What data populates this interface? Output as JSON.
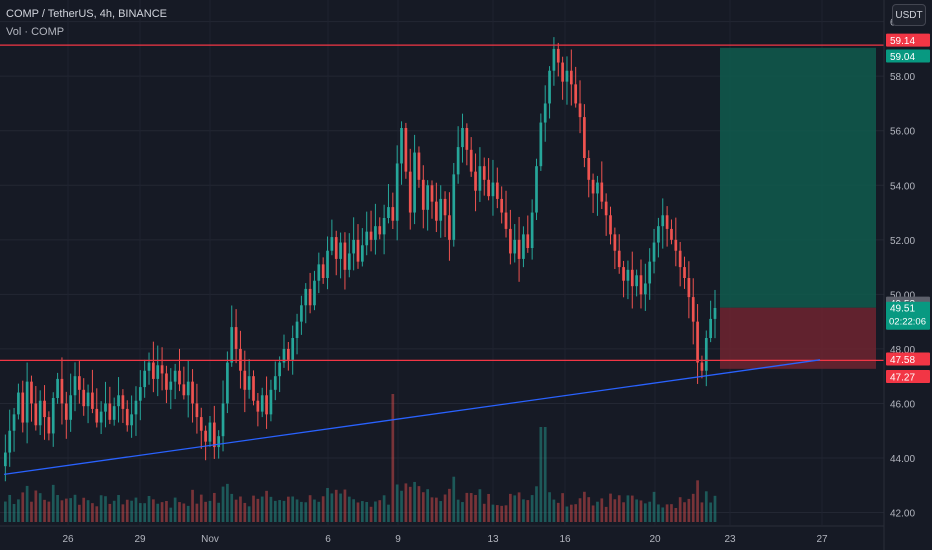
{
  "header": {
    "symbol_line": "COMP / TetherUS, 4h, BINANCE",
    "volume_line": "Vol · COMP"
  },
  "currency_button": "USDT",
  "price_labels": {
    "upper_line": "59.14",
    "target": "59.04",
    "last_close_gray": "49.53",
    "entry": "49.51",
    "countdown": "02:22:06",
    "support_line": "47.58",
    "stop": "47.27"
  },
  "colors": {
    "background": "#161a25",
    "up": "#26a69a",
    "down": "#ef5350",
    "horizontal_line": "#f23645",
    "trendline": "#2962ff",
    "profit_zone": "#0f5c4e",
    "loss_zone": "#6e2430"
  },
  "chart_data": {
    "type": "candlestick",
    "symbol": "COMP / TetherUS",
    "timeframe": "4h",
    "exchange": "BINANCE",
    "y_axis": {
      "unit": "USDT",
      "range": [
        41.8,
        60.5
      ],
      "ticks": [
        "60.00",
        "58.00",
        "56.00",
        "54.00",
        "52.00",
        "50.00",
        "48.00",
        "46.00",
        "44.00",
        "42.00"
      ]
    },
    "x_axis": {
      "ticks": [
        "26",
        "29",
        "Nov",
        "6",
        "9",
        "13",
        "16",
        "20",
        "23",
        "27"
      ]
    },
    "horizontal_lines": [
      59.14,
      47.58
    ],
    "trendline": {
      "from": {
        "date": "Oct 23",
        "price": 43.4
      },
      "to": {
        "date": "Nov 27",
        "price": 47.6
      }
    },
    "position": {
      "type": "long",
      "entry": 49.51,
      "target": 59.04,
      "stop": 47.27
    },
    "last_price": 49.51,
    "close_series": [
      44.2,
      45.0,
      45.6,
      46.4,
      45.3,
      46.8,
      46.0,
      45.2,
      46.1,
      45.5,
      44.9,
      46.2,
      46.9,
      46.0,
      45.4,
      46.3,
      47.0,
      46.5,
      45.9,
      46.4,
      45.8,
      45.3,
      45.7,
      46.0,
      45.4,
      45.9,
      46.3,
      45.8,
      45.2,
      45.6,
      46.1,
      46.6,
      47.2,
      47.5,
      46.9,
      47.4,
      47.1,
      46.5,
      46.8,
      47.2,
      46.7,
      46.3,
      46.8,
      46.0,
      45.5,
      45.0,
      44.6,
      45.3,
      44.4,
      44.8,
      46.0,
      47.5,
      48.8,
      48.0,
      47.2,
      46.5,
      47.0,
      46.1,
      45.7,
      46.3,
      45.6,
      46.5,
      47.0,
      47.5,
      48.0,
      47.6,
      48.4,
      49.0,
      49.6,
      50.2,
      49.6,
      50.5,
      51.1,
      50.6,
      51.6,
      52.1,
      51.3,
      51.9,
      50.9,
      51.5,
      52.0,
      51.2,
      51.8,
      52.3,
      52.0,
      52.5,
      52.2,
      52.8,
      53.2,
      52.7,
      54.8,
      56.1,
      54.5,
      53.0,
      55.2,
      54.2,
      53.1,
      54.0,
      53.4,
      52.7,
      53.5,
      52.9,
      52.0,
      54.4,
      55.4,
      56.1,
      55.3,
      54.5,
      53.8,
      54.7,
      54.2,
      53.6,
      54.1,
      53.5,
      53.0,
      52.4,
      51.5,
      52.0,
      51.3,
      52.2,
      51.7,
      53.0,
      54.7,
      56.3,
      57.0,
      58.2,
      59.0,
      58.5,
      57.8,
      58.2,
      57.7,
      57.0,
      56.5,
      55.0,
      54.2,
      53.7,
      54.1,
      53.4,
      52.9,
      52.2,
      51.6,
      51.0,
      50.5,
      50.9,
      50.3,
      50.7,
      50.0,
      50.4,
      51.2,
      51.9,
      52.5,
      52.9,
      52.4,
      52.0,
      51.6,
      51.0,
      50.6,
      49.9,
      49.0,
      47.5,
      47.2,
      48.4,
      49.1,
      49.5
    ],
    "volume_pane": {
      "label": "Vol · COMP"
    }
  }
}
